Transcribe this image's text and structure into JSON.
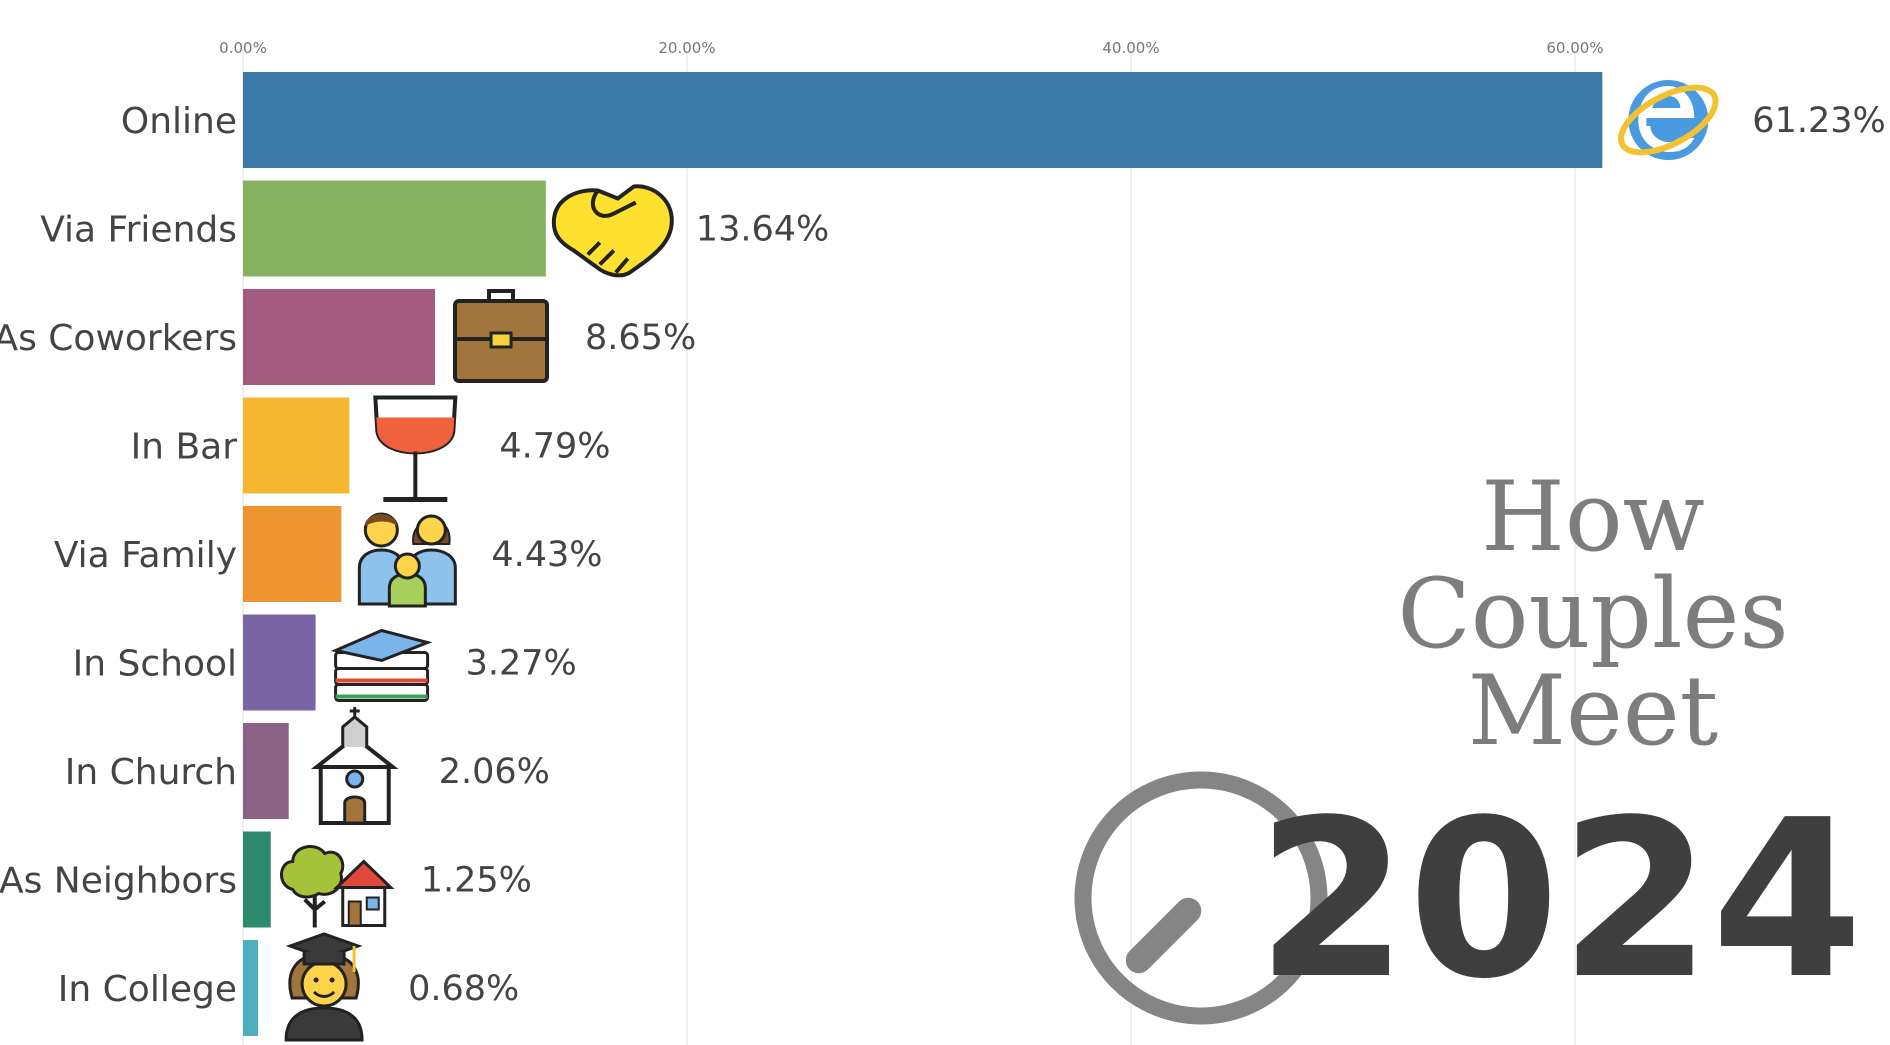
{
  "chart_data": {
    "type": "bar",
    "orientation": "horizontal",
    "title_lines": [
      "How",
      "Couples",
      "Meet"
    ],
    "year": "2024",
    "categories": [
      "Online",
      "Via Friends",
      "As Coworkers",
      "In Bar",
      "Via Family",
      "In School",
      "In Church",
      "As Neighbors",
      "In College"
    ],
    "values": [
      61.23,
      13.64,
      8.65,
      4.79,
      4.43,
      3.27,
      2.06,
      1.25,
      0.68
    ],
    "value_labels": [
      "61.23%",
      "13.64%",
      "8.65%",
      "4.79%",
      "4.43%",
      "3.27%",
      "2.06%",
      "1.25%",
      "0.68%"
    ],
    "colors": [
      "#3b7aa8",
      "#86b25f",
      "#a35b7f",
      "#f5b731",
      "#ee9532",
      "#7965a3",
      "#8c6386",
      "#2e8a6c",
      "#4eaebb"
    ],
    "icons": [
      "internet-explorer-icon",
      "handshake-icon",
      "briefcase-icon",
      "wine-glass-icon",
      "family-icon",
      "books-icon",
      "church-icon",
      "tree-house-icon",
      "graduate-icon"
    ],
    "xlim": [
      0,
      63
    ],
    "x_ticks": [
      0,
      20,
      40,
      60
    ],
    "x_tick_labels": [
      "0.00%",
      "20.00%",
      "40.00%",
      "60.00%"
    ],
    "grid": true,
    "xlabel": "",
    "ylabel": "",
    "progress_dial": {
      "icon": "clock-dial-icon",
      "fraction": 0.625
    }
  }
}
